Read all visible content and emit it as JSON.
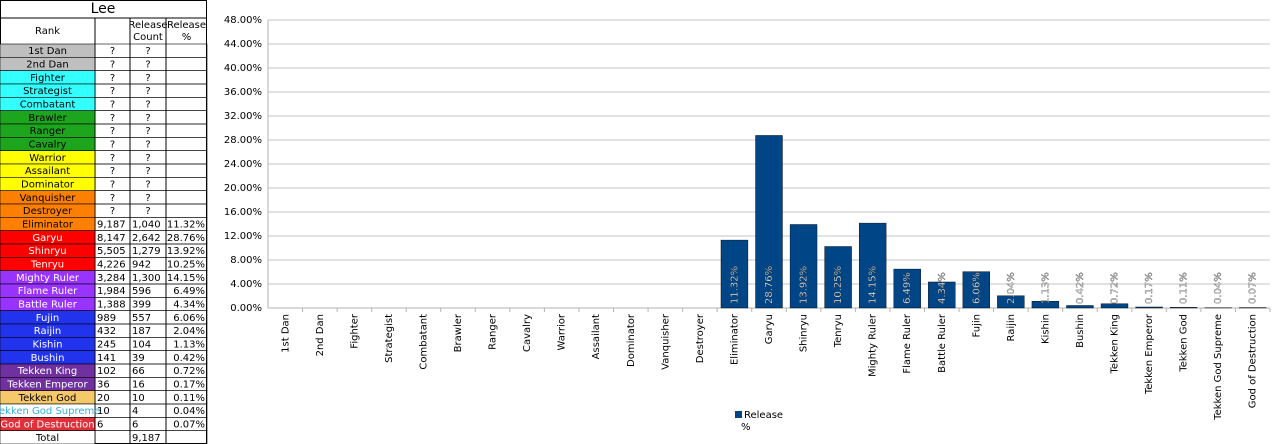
{
  "table": {
    "title": "Lee",
    "headers": [
      "Rank",
      null,
      "Release Count",
      "Release %"
    ],
    "rows": [
      {
        "cells": [
          "1st Dan",
          "?",
          "?",
          null
        ],
        "color": "#bfbfbf",
        "text_color": "#000000"
      },
      {
        "cells": [
          "2nd Dan",
          "?",
          "?",
          null
        ],
        "color": "#bfbfbf",
        "text_color": "#000000"
      },
      {
        "cells": [
          "Fighter",
          "?",
          "?",
          null
        ],
        "color": "#33ffff",
        "text_color": "#000000"
      },
      {
        "cells": [
          "Strategist",
          "?",
          "?",
          null
        ],
        "color": "#33ffff",
        "text_color": "#000000"
      },
      {
        "cells": [
          "Combatant",
          "?",
          "?",
          null
        ],
        "color": "#33ffff",
        "text_color": "#000000"
      },
      {
        "cells": [
          "Brawler",
          "?",
          "?",
          null
        ],
        "color": "#1ea51e",
        "text_color": "#000000"
      },
      {
        "cells": [
          "Ranger",
          "?",
          "?",
          null
        ],
        "color": "#1ea51e",
        "text_color": "#000000"
      },
      {
        "cells": [
          "Cavalry",
          "?",
          "?",
          null
        ],
        "color": "#1ea51e",
        "text_color": "#000000"
      },
      {
        "cells": [
          "Warrior",
          "?",
          "?",
          null
        ],
        "color": "#ffff00",
        "text_color": "#000000"
      },
      {
        "cells": [
          "Assailant",
          "?",
          "?",
          null
        ],
        "color": "#ffff00",
        "text_color": "#000000"
      },
      {
        "cells": [
          "Dominator",
          "?",
          "?",
          null
        ],
        "color": "#ffff00",
        "text_color": "#000000"
      },
      {
        "cells": [
          "Vanquisher",
          "?",
          "?",
          null
        ],
        "color": "#ff8000",
        "text_color": "#000000"
      },
      {
        "cells": [
          "Destroyer",
          "?",
          "?",
          null
        ],
        "color": "#ff8000",
        "text_color": "#000000"
      },
      {
        "cells": [
          "Eliminator",
          "9,187",
          "1,040",
          "11.32%"
        ],
        "color": "#ff8000",
        "text_color": "#000000"
      },
      {
        "cells": [
          "Garyu",
          "8,147",
          "2,642",
          "28.76%"
        ],
        "color": "#ff0000",
        "text_color": "#ffffff"
      },
      {
        "cells": [
          "Shinryu",
          "5,505",
          "1,279",
          "13.92%"
        ],
        "color": "#ff0000",
        "text_color": "#ffffff"
      },
      {
        "cells": [
          "Tenryu",
          "4,226",
          "942",
          "10.25%"
        ],
        "color": "#ff0000",
        "text_color": "#ffffff"
      },
      {
        "cells": [
          "Mighty Ruler",
          "3,284",
          "1,300",
          "14.15%"
        ],
        "color": "#9933ff",
        "text_color": "#ffffff"
      },
      {
        "cells": [
          "Flame Ruler",
          "1,984",
          "596",
          "6.49%"
        ],
        "color": "#9933ff",
        "text_color": "#ffffff"
      },
      {
        "cells": [
          "Battle Ruler",
          "1,388",
          "399",
          "4.34%"
        ],
        "color": "#9933ff",
        "text_color": "#ffffff"
      },
      {
        "cells": [
          "Fujin",
          "989",
          "557",
          "6.06%"
        ],
        "color": "#2233ee",
        "text_color": "#ffffff"
      },
      {
        "cells": [
          "Raijin",
          "432",
          "187",
          "2.04%"
        ],
        "color": "#2233ee",
        "text_color": "#ffffff"
      },
      {
        "cells": [
          "Kishin",
          "245",
          "104",
          "1.13%"
        ],
        "color": "#2233ee",
        "text_color": "#ffffff"
      },
      {
        "cells": [
          "Bushin",
          "141",
          "39",
          "0.42%"
        ],
        "color": "#2233ee",
        "text_color": "#ffffff"
      },
      {
        "cells": [
          "Tekken King",
          "102",
          "66",
          "0.72%"
        ],
        "color": "#7030a0",
        "text_color": "#ffffff"
      },
      {
        "cells": [
          "Tekken Emperor",
          "36",
          "16",
          "0.17%"
        ],
        "color": "#7030a0",
        "text_color": "#ffffff"
      },
      {
        "cells": [
          "Tekken God",
          "20",
          "10",
          "0.11%"
        ],
        "color": "#f5c86a",
        "text_color": "#000000"
      },
      {
        "cells": [
          "Tekken God Supreme",
          "10",
          "4",
          "0.04%"
        ],
        "color": "#ffffff",
        "text_color": "#33b0e0"
      },
      {
        "cells": [
          "God of Destruction",
          "6",
          "6",
          "0.07%"
        ],
        "color": "#e0303a",
        "text_color": "#ffffff"
      },
      {
        "cells": [
          "Total",
          null,
          "9,187",
          null
        ],
        "color": "#ffffff",
        "text_color": "#000000"
      }
    ]
  },
  "chart_data": {
    "type": "bar",
    "categories": [
      "1st Dan",
      "2nd Dan",
      "Fighter",
      "Strategist",
      "Combatant",
      "Brawler",
      "Ranger",
      "Cavalry",
      "Warrior",
      "Assailant",
      "Dominator",
      "Vanquisher",
      "Destroyer",
      "Eliminator",
      "Garyu",
      "Shinryu",
      "Tenryu",
      "Mighty Ruler",
      "Flame Ruler",
      "Battle Ruler",
      "Fujin",
      "Raijin",
      "Kishin",
      "Bushin",
      "Tekken King",
      "Tekken Emperor",
      "Tekken God",
      "Tekken God Supreme",
      "God of Destruction"
    ],
    "series": [
      {
        "name": "Release %",
        "color": "#004586",
        "values": [
          null,
          null,
          null,
          null,
          null,
          null,
          null,
          null,
          null,
          null,
          null,
          null,
          null,
          11.32,
          28.76,
          13.92,
          10.25,
          14.15,
          6.49,
          4.34,
          6.06,
          2.04,
          1.13,
          0.42,
          0.72,
          0.17,
          0.11,
          0.04,
          0.07
        ],
        "value_labels": [
          null,
          null,
          null,
          null,
          null,
          null,
          null,
          null,
          null,
          null,
          null,
          null,
          null,
          "11.32%",
          "28.76%",
          "13.92%",
          "10.25%",
          "14.15%",
          "6.49%",
          "4.34%",
          "6.06%",
          "2.04%",
          "1.13%",
          "0.42%",
          "0.72%",
          "0.17%",
          "0.11%",
          "0.04%",
          "0.07%"
        ]
      }
    ],
    "ylim": [
      0,
      48
    ],
    "yticks": [
      {
        "value": 0,
        "label": "0.00%"
      },
      {
        "value": 4,
        "label": "4.00%"
      },
      {
        "value": 8,
        "label": "8.00%"
      },
      {
        "value": 12,
        "label": "12.00%"
      },
      {
        "value": 16,
        "label": "16.00%"
      },
      {
        "value": 20,
        "label": "20.00%"
      },
      {
        "value": 24,
        "label": "24.00%"
      },
      {
        "value": 28,
        "label": "28.00%"
      },
      {
        "value": 32,
        "label": "32.00%"
      },
      {
        "value": 36,
        "label": "36.00%"
      },
      {
        "value": 40,
        "label": "40.00%"
      },
      {
        "value": 44,
        "label": "44.00%"
      },
      {
        "value": 48,
        "label": "48.00%"
      }
    ],
    "grid": true,
    "legend": "bottom"
  }
}
